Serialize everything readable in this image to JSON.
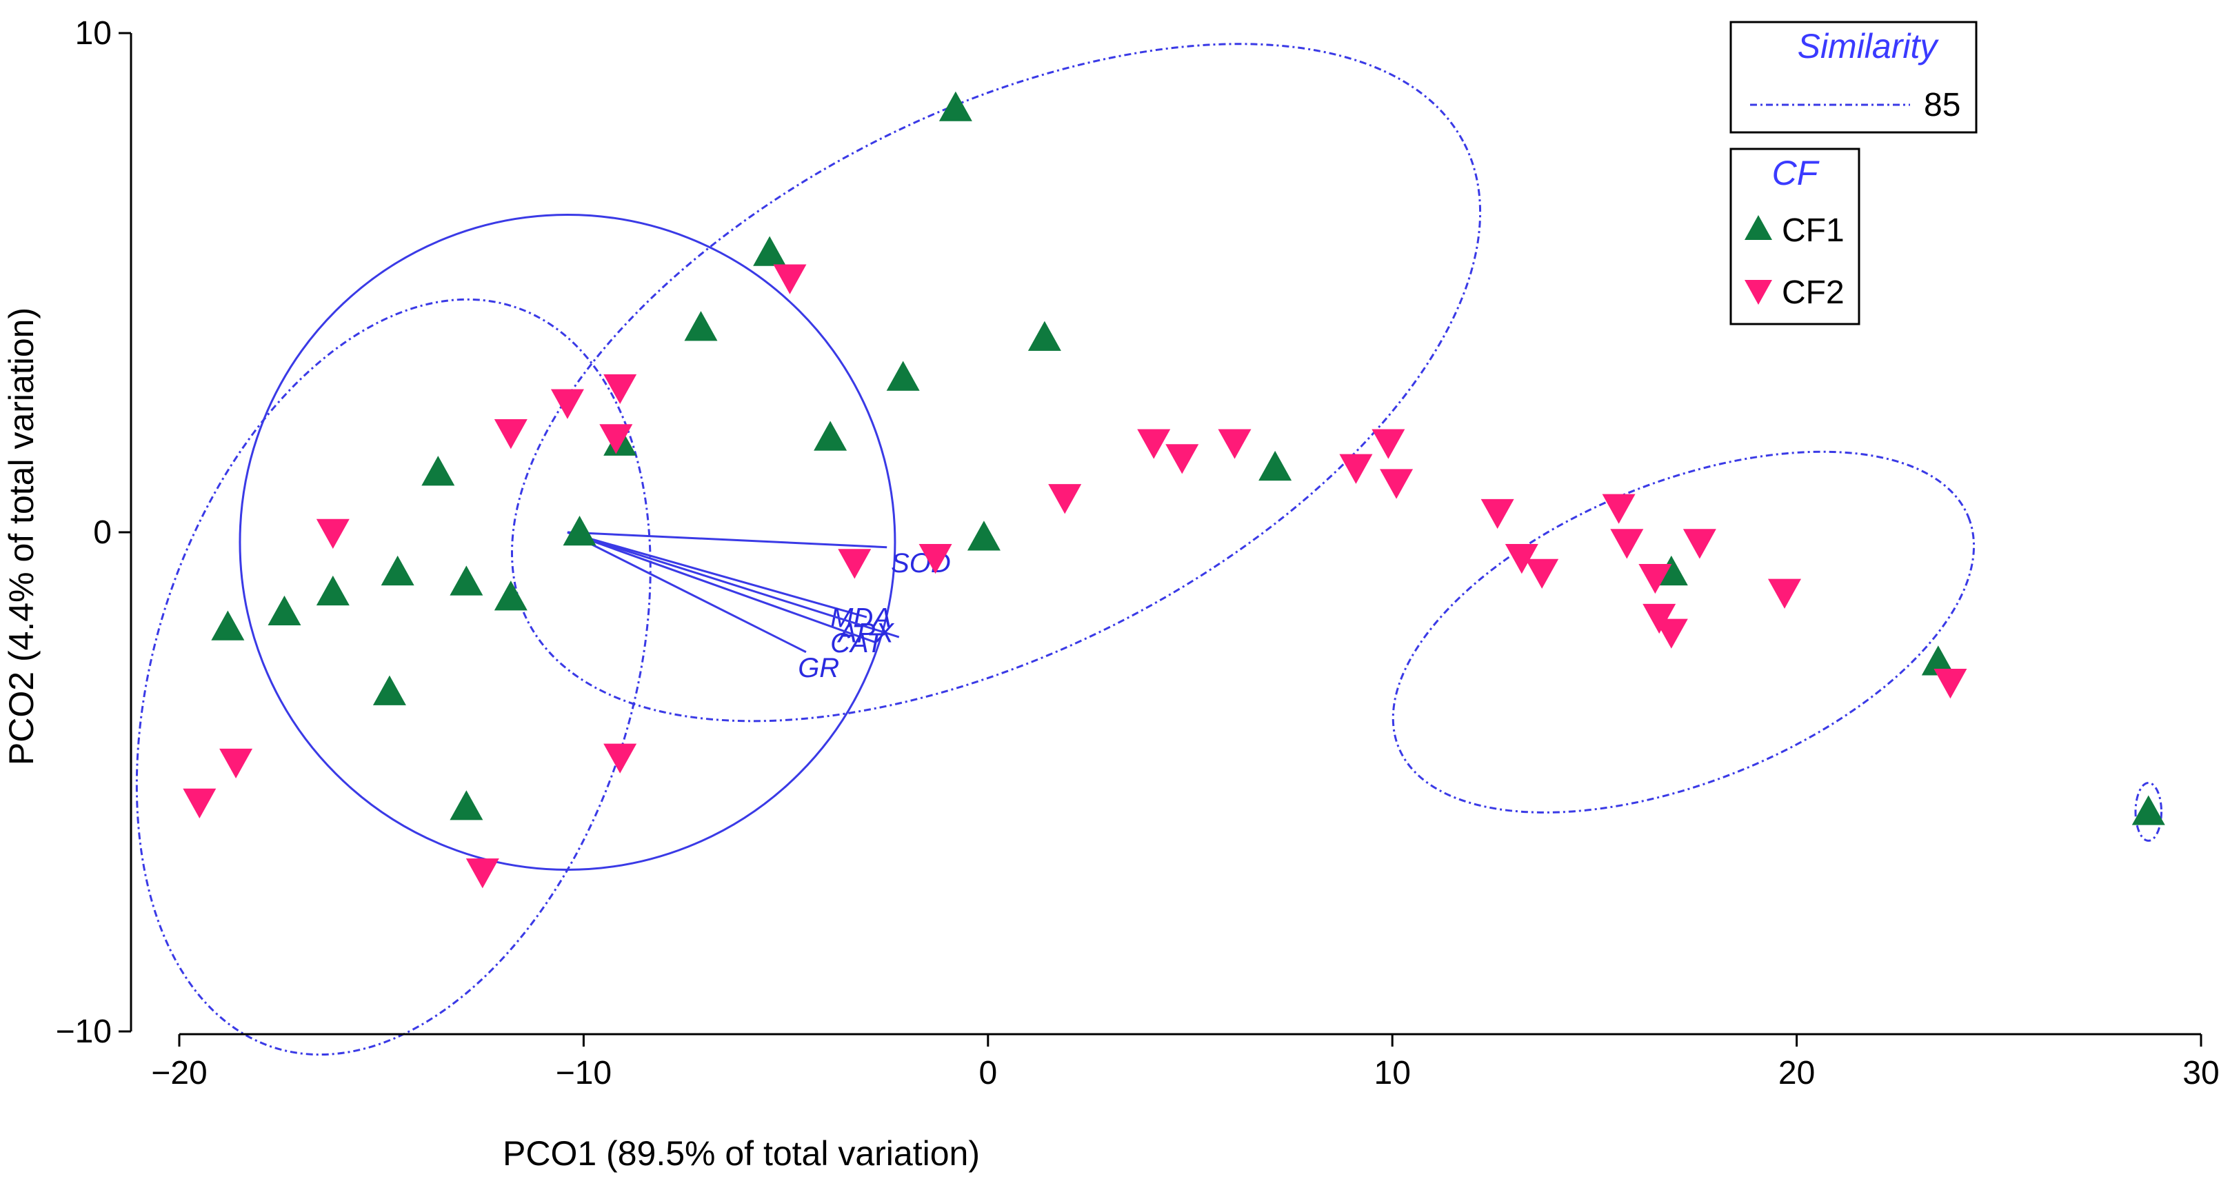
{
  "chart_data": {
    "type": "scatter",
    "title": "",
    "xlabel": "PCO1 (89.5% of total variation)",
    "ylabel": "PCO2 (4.4% of total variation)",
    "xlim": [
      -20,
      30
    ],
    "ylim": [
      -10,
      10
    ],
    "xticks": [
      -20,
      -10,
      0,
      10,
      20,
      30
    ],
    "yticks": [
      -10,
      0,
      10
    ],
    "xtick_labels": [
      "−20",
      "−10",
      "0",
      "10",
      "20",
      "30"
    ],
    "ytick_labels": [
      "−10",
      "0",
      "10"
    ],
    "colors": {
      "CF1": "#0e7a3e",
      "CF2": "#ff1a78",
      "overlay": "#3a3ae6"
    },
    "series": [
      {
        "name": "CF1",
        "marker": "triangle-up",
        "points": [
          [
            -0.8,
            8.5
          ],
          [
            -5.4,
            5.6
          ],
          [
            -7.1,
            4.1
          ],
          [
            1.4,
            3.9
          ],
          [
            -2.1,
            3.1
          ],
          [
            -3.9,
            1.9
          ],
          [
            -9.1,
            1.8
          ],
          [
            -13.6,
            1.2
          ],
          [
            7.1,
            1.3
          ],
          [
            -10.1,
            0.0
          ],
          [
            -0.1,
            -0.1
          ],
          [
            -14.6,
            -0.8
          ],
          [
            -12.9,
            -1.0
          ],
          [
            -16.2,
            -1.2
          ],
          [
            -11.8,
            -1.3
          ],
          [
            -17.4,
            -1.6
          ],
          [
            -18.8,
            -1.9
          ],
          [
            16.9,
            -0.8
          ],
          [
            -14.8,
            -3.2
          ],
          [
            23.5,
            -2.6
          ],
          [
            -12.9,
            -5.5
          ],
          [
            28.7,
            -5.6
          ]
        ]
      },
      {
        "name": "CF2",
        "marker": "triangle-down",
        "points": [
          [
            -4.9,
            5.1
          ],
          [
            -9.1,
            2.9
          ],
          [
            -10.4,
            2.6
          ],
          [
            -11.8,
            2.0
          ],
          [
            -9.2,
            1.9
          ],
          [
            4.1,
            1.8
          ],
          [
            4.8,
            1.5
          ],
          [
            6.1,
            1.8
          ],
          [
            9.1,
            1.3
          ],
          [
            9.9,
            1.8
          ],
          [
            10.1,
            1.0
          ],
          [
            1.9,
            0.7
          ],
          [
            12.6,
            0.4
          ],
          [
            13.2,
            -0.5
          ],
          [
            13.7,
            -0.8
          ],
          [
            15.6,
            0.5
          ],
          [
            15.8,
            -0.2
          ],
          [
            17.6,
            -0.2
          ],
          [
            16.5,
            -0.9
          ],
          [
            16.6,
            -1.7
          ],
          [
            16.9,
            -2.0
          ],
          [
            19.7,
            -1.2
          ],
          [
            23.8,
            -3.0
          ],
          [
            -16.2,
            0.0
          ],
          [
            -1.3,
            -0.5
          ],
          [
            -3.3,
            -0.6
          ],
          [
            -9.1,
            -4.5
          ],
          [
            -18.6,
            -4.6
          ],
          [
            -19.5,
            -5.4
          ],
          [
            -12.5,
            -6.8
          ]
        ]
      }
    ],
    "similarity_ellipses": [
      {
        "level": 85,
        "cx": 0.2,
        "cy": 3.0,
        "rx": 13.0,
        "ry": 5.4,
        "angle_deg": -27
      },
      {
        "level": 85,
        "cx": -14.7,
        "cy": -2.9,
        "rx": 5.9,
        "ry": 7.8,
        "angle_deg": 18
      },
      {
        "level": 85,
        "cx": 17.2,
        "cy": -2.0,
        "rx": 7.6,
        "ry": 3.0,
        "angle_deg": -22
      },
      {
        "level": 85,
        "cx": 28.7,
        "cy": -5.6,
        "rx": 0.32,
        "ry": 0.58,
        "angle_deg": 0
      }
    ],
    "correlation_circle": {
      "cx": -10.4,
      "cy": -0.2,
      "r": 8.1
    },
    "vectors": [
      {
        "label": "SOD",
        "to": [
          -2.5,
          -0.3
        ],
        "label_at": [
          -2.4,
          -0.8
        ]
      },
      {
        "label": "MDA",
        "to": [
          -3.0,
          -1.7
        ],
        "label_at": [
          -3.9,
          -1.9
        ]
      },
      {
        "label": "APX",
        "to": [
          -2.2,
          -2.1
        ],
        "label_at": [
          -3.7,
          -2.2
        ]
      },
      {
        "label": "CAT",
        "to": [
          -2.8,
          -2.2
        ],
        "label_at": [
          -3.9,
          -2.4
        ]
      },
      {
        "label": "GR",
        "to": [
          -4.5,
          -2.4
        ],
        "label_at": [
          -4.7,
          -2.9
        ]
      }
    ],
    "vector_origin": [
      -10.4,
      0.0
    ],
    "legend": {
      "placement": "top-right",
      "similarity_title": "Similarity",
      "similarity_value": "85",
      "group_title": "CF",
      "entries": [
        "CF1",
        "CF2"
      ]
    }
  }
}
